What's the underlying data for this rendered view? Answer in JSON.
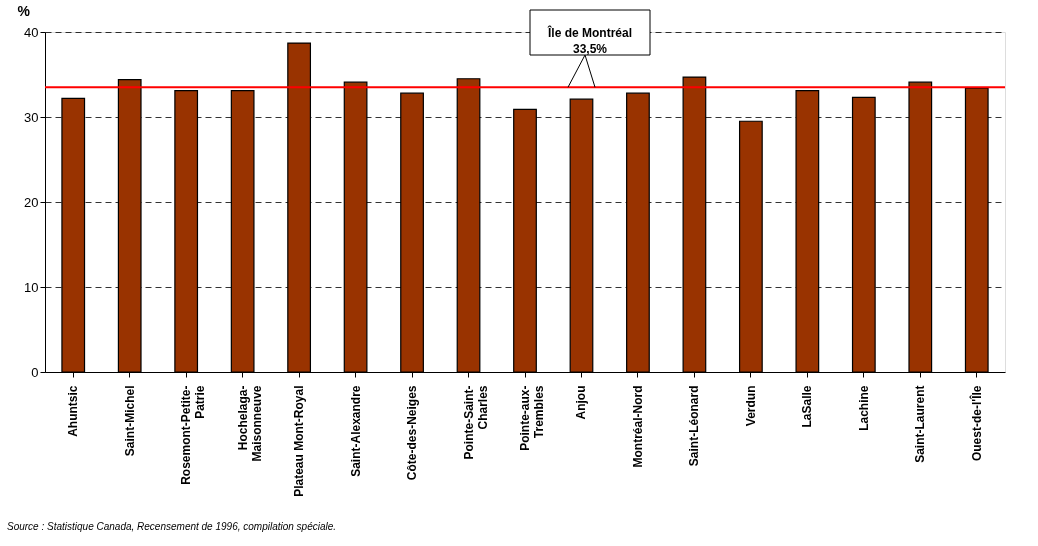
{
  "chart_data": {
    "type": "bar",
    "ylabel": "%",
    "categories": [
      "Ahuntsic",
      "Saint-Michel",
      "Rosemont-Petite-Patrie",
      "Hochelaga-Maisonneuve",
      "Plateau Mont-Royal",
      "Saint-Alexandre",
      "Côte-des-Neiges",
      "Pointe-Saint-Charles",
      "Pointe-aux-Trembles",
      "Anjou",
      "Montréal-Nord",
      "Saint-Léonard",
      "Verdun",
      "LaSalle",
      "Lachine",
      "Saint-Laurent",
      "Ouest-de-l'Île"
    ],
    "values": [
      32.2,
      34.4,
      33.1,
      33.1,
      38.7,
      34.1,
      32.8,
      34.5,
      30.9,
      32.1,
      32.8,
      34.7,
      29.5,
      33.1,
      32.3,
      34.1,
      33.4
    ],
    "color": "#993300",
    "ylim": [
      0,
      40
    ],
    "yticks": [
      0,
      10,
      20,
      30,
      40
    ],
    "grid": "y",
    "ref_lines": [
      {
        "axis": "y",
        "value": 33.5,
        "label": "Île de Montréal\n33,5%",
        "color": "#ff0000"
      }
    ],
    "annotations": [
      "Source : Statistique Canada, Recensement de 1996, compilation spéciale."
    ]
  }
}
